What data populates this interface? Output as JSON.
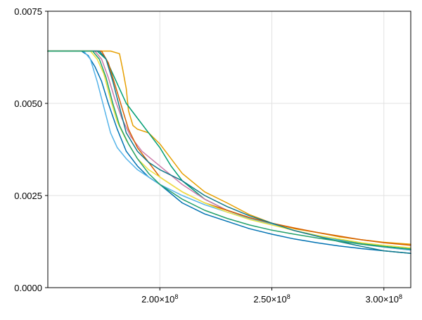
{
  "chart_data": {
    "type": "line",
    "title": "",
    "xlabel": "",
    "ylabel": "",
    "xlim": [
      150000000,
      312000000
    ],
    "ylim": [
      0,
      0.0075
    ],
    "grid": true,
    "x_ticks": [
      {
        "value": 200000000,
        "mantissa": "2.00×10",
        "exp": "8"
      },
      {
        "value": 250000000,
        "mantissa": "2.50×10",
        "exp": "8"
      },
      {
        "value": 300000000,
        "mantissa": "3.00×10",
        "exp": "8"
      }
    ],
    "y_ticks": [
      {
        "value": 0,
        "label": "0.0000"
      },
      {
        "value": 0.0025,
        "label": "0.0025"
      },
      {
        "value": 0.005,
        "label": "0.0050"
      },
      {
        "value": 0.0075,
        "label": "0.0075"
      }
    ],
    "series": [
      {
        "color": "#0072B2",
        "points": [
          [
            150000000,
            0.00642
          ],
          [
            165000000,
            0.00642
          ],
          [
            168000000,
            0.0063
          ],
          [
            171000000,
            0.006
          ],
          [
            174000000,
            0.0056
          ],
          [
            177000000,
            0.005
          ],
          [
            181000000,
            0.0043
          ],
          [
            185000000,
            0.0037
          ],
          [
            190000000,
            0.0033
          ],
          [
            195000000,
            0.003
          ],
          [
            200000000,
            0.0028
          ],
          [
            210000000,
            0.0023
          ],
          [
            220000000,
            0.002
          ],
          [
            230000000,
            0.0018
          ],
          [
            240000000,
            0.0016
          ],
          [
            250000000,
            0.00145
          ],
          [
            260000000,
            0.00132
          ],
          [
            270000000,
            0.00122
          ],
          [
            280000000,
            0.00113
          ],
          [
            290000000,
            0.00106
          ],
          [
            300000000,
            0.001
          ],
          [
            312000000,
            0.00093
          ]
        ]
      },
      {
        "color": "#E69F00",
        "points": [
          [
            150000000,
            0.00642
          ],
          [
            178000000,
            0.00642
          ],
          [
            182000000,
            0.00635
          ],
          [
            183500000,
            0.0059
          ],
          [
            185000000,
            0.0054
          ],
          [
            186000000,
            0.0048
          ],
          [
            188000000,
            0.0044
          ],
          [
            190000000,
            0.0043
          ],
          [
            195000000,
            0.0042
          ],
          [
            200000000,
            0.0039
          ],
          [
            210000000,
            0.0031
          ],
          [
            220000000,
            0.0026
          ],
          [
            230000000,
            0.0023
          ],
          [
            240000000,
            0.00198
          ],
          [
            250000000,
            0.00175
          ],
          [
            260000000,
            0.0016
          ],
          [
            270000000,
            0.0015
          ],
          [
            280000000,
            0.00138
          ],
          [
            290000000,
            0.0013
          ],
          [
            300000000,
            0.00123
          ],
          [
            312000000,
            0.00118
          ]
        ]
      },
      {
        "color": "#009E73",
        "points": [
          [
            150000000,
            0.00642
          ],
          [
            172000000,
            0.00642
          ],
          [
            176000000,
            0.0062
          ],
          [
            179000000,
            0.0058
          ],
          [
            182000000,
            0.0054
          ],
          [
            185000000,
            0.005
          ],
          [
            190000000,
            0.0046
          ],
          [
            195000000,
            0.0042
          ],
          [
            200000000,
            0.0038
          ],
          [
            205000000,
            0.0033
          ],
          [
            210000000,
            0.0029
          ],
          [
            220000000,
            0.0024
          ],
          [
            230000000,
            0.0021
          ],
          [
            240000000,
            0.0019
          ],
          [
            250000000,
            0.00172
          ],
          [
            260000000,
            0.00155
          ],
          [
            270000000,
            0.00142
          ],
          [
            280000000,
            0.0013
          ],
          [
            290000000,
            0.0012
          ],
          [
            300000000,
            0.00112
          ],
          [
            312000000,
            0.00105
          ]
        ]
      },
      {
        "color": "#CC79A7",
        "points": [
          [
            150000000,
            0.00642
          ],
          [
            171000000,
            0.00642
          ],
          [
            174000000,
            0.0062
          ],
          [
            177000000,
            0.0057
          ],
          [
            180000000,
            0.0051
          ],
          [
            183000000,
            0.0046
          ],
          [
            187000000,
            0.0041
          ],
          [
            192000000,
            0.0037
          ],
          [
            200000000,
            0.0033
          ],
          [
            210000000,
            0.0028
          ],
          [
            220000000,
            0.0024
          ],
          [
            230000000,
            0.0021
          ],
          [
            240000000,
            0.0019
          ],
          [
            250000000,
            0.00172
          ],
          [
            260000000,
            0.00155
          ],
          [
            270000000,
            0.0014
          ],
          [
            280000000,
            0.00128
          ],
          [
            290000000,
            0.00118
          ],
          [
            300000000,
            0.0011
          ],
          [
            312000000,
            0.00102
          ]
        ]
      },
      {
        "color": "#56B4E9",
        "points": [
          [
            150000000,
            0.00642
          ],
          [
            166000000,
            0.00642
          ],
          [
            169000000,
            0.0062
          ],
          [
            172000000,
            0.0056
          ],
          [
            175000000,
            0.0049
          ],
          [
            178000000,
            0.0042
          ],
          [
            181000000,
            0.0038
          ],
          [
            185000000,
            0.0035
          ],
          [
            190000000,
            0.0032
          ],
          [
            200000000,
            0.0028
          ],
          [
            210000000,
            0.0025
          ],
          [
            220000000,
            0.00225
          ],
          [
            230000000,
            0.00205
          ],
          [
            240000000,
            0.00188
          ],
          [
            250000000,
            0.00172
          ],
          [
            260000000,
            0.00155
          ],
          [
            270000000,
            0.0014
          ],
          [
            280000000,
            0.00128
          ],
          [
            290000000,
            0.00118
          ],
          [
            300000000,
            0.0011
          ],
          [
            312000000,
            0.00102
          ]
        ]
      },
      {
        "color": "#D55E00",
        "points": [
          [
            150000000,
            0.00642
          ],
          [
            174000000,
            0.00642
          ],
          [
            177000000,
            0.0061
          ],
          [
            180000000,
            0.0055
          ],
          [
            183000000,
            0.0049
          ],
          [
            186000000,
            0.0043
          ],
          [
            190000000,
            0.0038
          ],
          [
            195000000,
            0.0034
          ],
          [
            200000000,
            0.003
          ],
          [
            210000000,
            0.0026
          ],
          [
            220000000,
            0.0023
          ],
          [
            230000000,
            0.0021
          ],
          [
            240000000,
            0.0019
          ],
          [
            250000000,
            0.00175
          ],
          [
            260000000,
            0.00162
          ],
          [
            270000000,
            0.0015
          ],
          [
            280000000,
            0.0014
          ],
          [
            290000000,
            0.0013
          ],
          [
            300000000,
            0.00122
          ],
          [
            312000000,
            0.00115
          ]
        ]
      },
      {
        "color": "#F0E442",
        "points": [
          [
            150000000,
            0.00642
          ],
          [
            169000000,
            0.00642
          ],
          [
            172000000,
            0.0062
          ],
          [
            175000000,
            0.0058
          ],
          [
            178000000,
            0.0051
          ],
          [
            181000000,
            0.0045
          ],
          [
            185000000,
            0.004
          ],
          [
            190000000,
            0.0035
          ],
          [
            195000000,
            0.0032
          ],
          [
            200000000,
            0.003
          ],
          [
            210000000,
            0.0026
          ],
          [
            220000000,
            0.0023
          ],
          [
            230000000,
            0.00205
          ],
          [
            240000000,
            0.00185
          ],
          [
            250000000,
            0.0017
          ],
          [
            260000000,
            0.00155
          ],
          [
            270000000,
            0.00142
          ],
          [
            280000000,
            0.00132
          ],
          [
            290000000,
            0.00122
          ],
          [
            300000000,
            0.00115
          ],
          [
            312000000,
            0.00108
          ]
        ]
      },
      {
        "color": "#117A8B",
        "points": [
          [
            150000000,
            0.00642
          ],
          [
            173000000,
            0.00642
          ],
          [
            176000000,
            0.0062
          ],
          [
            179000000,
            0.0056
          ],
          [
            182000000,
            0.0049
          ],
          [
            185000000,
            0.0042
          ],
          [
            190000000,
            0.0037
          ],
          [
            195000000,
            0.0034
          ],
          [
            200000000,
            0.0032
          ],
          [
            210000000,
            0.0029
          ],
          [
            220000000,
            0.0025
          ],
          [
            230000000,
            0.0022
          ],
          [
            240000000,
            0.00195
          ],
          [
            250000000,
            0.00175
          ],
          [
            260000000,
            0.00155
          ],
          [
            270000000,
            0.0014
          ],
          [
            280000000,
            0.00125
          ],
          [
            290000000,
            0.00112
          ],
          [
            300000000,
            0.001
          ],
          [
            312000000,
            0.00093
          ]
        ]
      },
      {
        "color": "#22A06B",
        "points": [
          [
            150000000,
            0.00642
          ],
          [
            170000000,
            0.00642
          ],
          [
            173000000,
            0.0062
          ],
          [
            176000000,
            0.0057
          ],
          [
            179000000,
            0.005
          ],
          [
            182000000,
            0.0044
          ],
          [
            186000000,
            0.0039
          ],
          [
            190000000,
            0.0035
          ],
          [
            195000000,
            0.0031
          ],
          [
            200000000,
            0.0028
          ],
          [
            210000000,
            0.0024
          ],
          [
            220000000,
            0.0021
          ],
          [
            230000000,
            0.00188
          ],
          [
            240000000,
            0.0017
          ],
          [
            250000000,
            0.00156
          ],
          [
            260000000,
            0.00145
          ],
          [
            270000000,
            0.00135
          ],
          [
            280000000,
            0.00126
          ],
          [
            290000000,
            0.00118
          ],
          [
            300000000,
            0.00111
          ],
          [
            312000000,
            0.00104
          ]
        ]
      }
    ]
  }
}
